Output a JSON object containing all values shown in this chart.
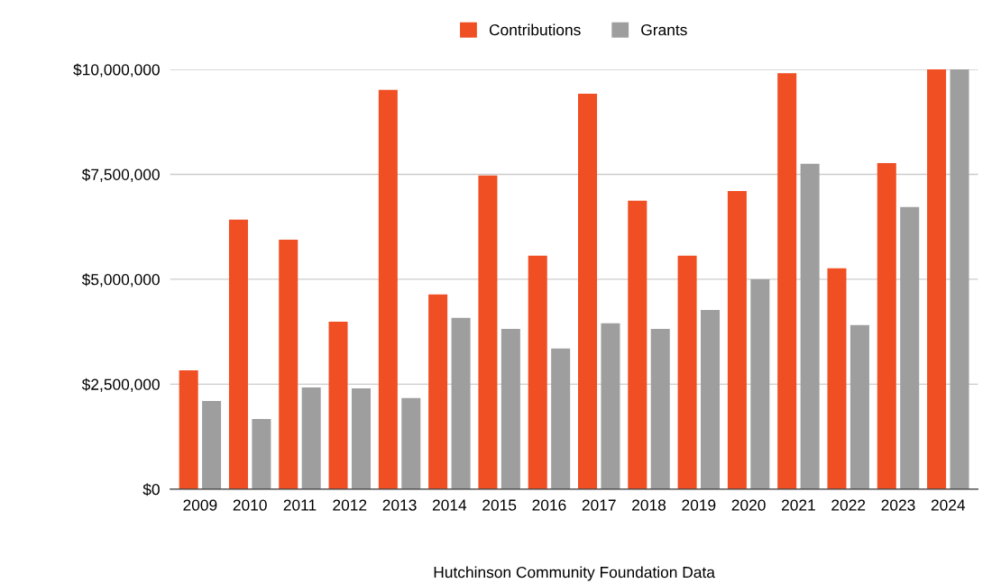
{
  "chart_data": {
    "type": "bar",
    "xlabel": "Hutchinson Community Foundation Data",
    "categories": [
      "2009",
      "2010",
      "2011",
      "2012",
      "2013",
      "2014",
      "2015",
      "2016",
      "2017",
      "2018",
      "2019",
      "2020",
      "2021",
      "2022",
      "2023",
      "2024"
    ],
    "series": [
      {
        "name": "Contributions",
        "color": "#f04e23",
        "values": [
          2830000,
          6420000,
          5940000,
          3990000,
          9510000,
          4640000,
          7470000,
          5560000,
          9420000,
          6870000,
          5560000,
          7100000,
          9910000,
          5260000,
          7770000,
          10000000
        ]
      },
      {
        "name": "Grants",
        "color": "#9e9e9e",
        "values": [
          2100000,
          1670000,
          2420000,
          2400000,
          2170000,
          4080000,
          3820000,
          3350000,
          3950000,
          3820000,
          4270000,
          5000000,
          7750000,
          3910000,
          6720000,
          10000000
        ]
      }
    ],
    "ylim": [
      0,
      10000000
    ],
    "yticks": [
      {
        "value": 0,
        "label": "$0"
      },
      {
        "value": 2500000,
        "label": "$2,500,000"
      },
      {
        "value": 5000000,
        "label": "$5,000,000"
      },
      {
        "value": 7500000,
        "label": "$7,500,000"
      },
      {
        "value": 10000000,
        "label": "$10,000,000"
      }
    ],
    "grid": "y",
    "legend": "top"
  }
}
